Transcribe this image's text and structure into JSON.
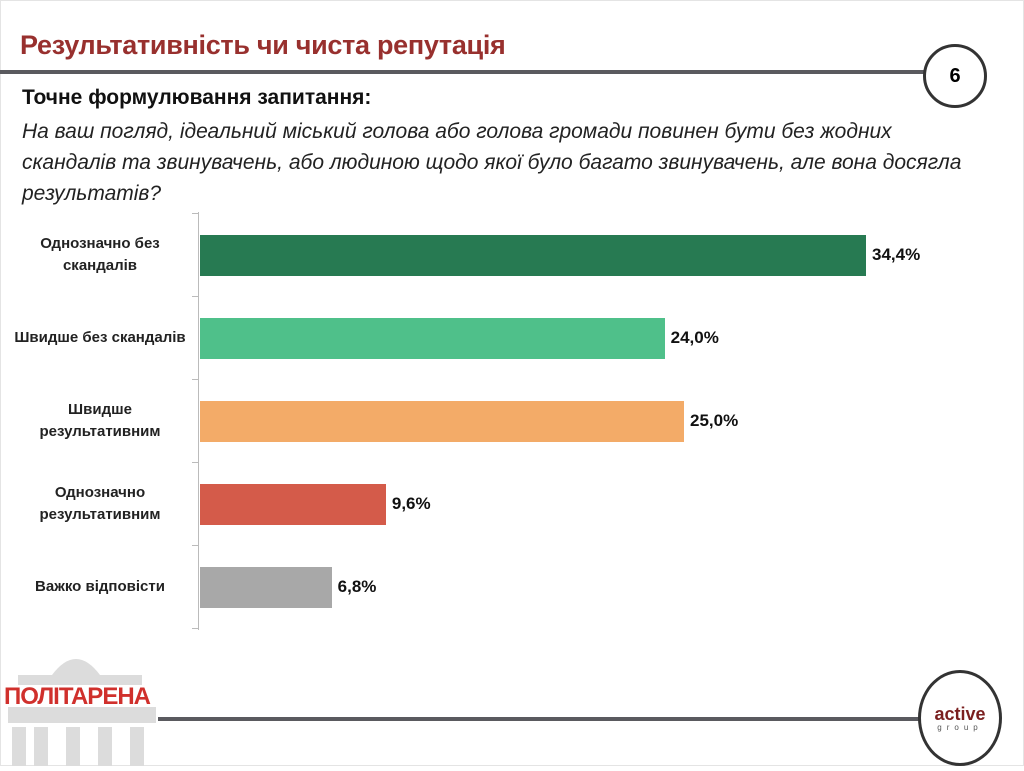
{
  "header": {
    "title": "Результативність чи чиста репутація",
    "page_number": "6"
  },
  "question": {
    "heading": "Точне формулювання запитання:",
    "text": "На ваш погляд, ідеальний міський голова або голова громади повинен бути без жодних скандалів та звинувачень, або людиною щодо якої було багато звинувачень, але вона досягла результатів?"
  },
  "chart_data": {
    "type": "bar",
    "orientation": "horizontal",
    "categories": [
      "Однозначно без скандалів",
      "Швидше без скандалів",
      "Швидше результативним",
      "Однозначно результативним",
      "Важко відповісти"
    ],
    "values": [
      34.4,
      24.0,
      25.0,
      9.6,
      6.8
    ],
    "labels": [
      "34,4%",
      "24,0%",
      "25,0%",
      "9,6%",
      "6,8%"
    ],
    "colors": [
      "#277a52",
      "#4fc08a",
      "#f3ab68",
      "#d45b4a",
      "#a8a8a8"
    ],
    "xlim": [
      0,
      34.4
    ],
    "grid": false,
    "legend": "none"
  },
  "footer": {
    "logo_left": "ПОЛІТАРЕНА",
    "logo_right_main": "active",
    "logo_right_sub": "group"
  }
}
